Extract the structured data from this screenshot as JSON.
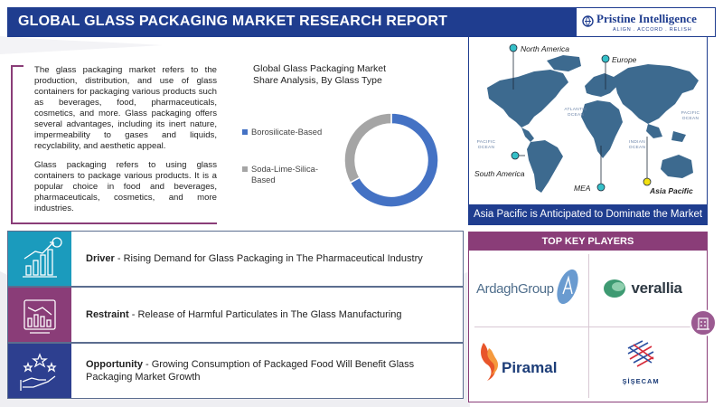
{
  "header": {
    "title": "GLOBAL GLASS PACKAGING MARKET RESEARCH REPORT",
    "brand_name": "Pristine Intelligence",
    "brand_tagline": "ALIGN . ACCORD . RELISH"
  },
  "intro": {
    "paragraph_1": "The glass packaging market refers to the production, distribution, and use of glass containers for packaging various products such as beverages, food, pharmaceuticals, cosmetics, and more. Glass packaging offers several advantages, including its inert nature, impermeability to gases and liquids, recyclability, and aesthetic appeal.",
    "paragraph_2": "Glass packaging refers to using glass containers to package various products. It is a popular choice in food and beverages, pharmaceuticals, cosmetics, and more industries."
  },
  "chart_data": {
    "type": "pie",
    "donut": true,
    "title": "Global Glass Packaging Market Share Analysis, By Glass Type",
    "categories": [
      "Borosilicate-Based",
      "Soda-Lime-Silica-Based"
    ],
    "values": [
      67,
      33
    ],
    "colors": [
      "#4472c4",
      "#a5a5a5"
    ],
    "legend_position": "left"
  },
  "map": {
    "regions": [
      "North America",
      "Europe",
      "South America",
      "MEA",
      "Asia Pacific"
    ],
    "highlight_region": "Asia Pacific",
    "oceans": {
      "atlantic": "ATLANTIC OCEAN",
      "pacific_left": "PACIFIC OCEAN",
      "pacific_right": "PACIFIC OCEAN",
      "indian": "INDIAN OCEAN"
    },
    "caption": "Asia Pacific is Anticipated to Dominate the Market",
    "marker_color": "#35c0c8",
    "highlight_color": "#f2e010"
  },
  "factors": [
    {
      "title": "Driver",
      "text": " - Rising Demand for Glass Packaging in The Pharmaceutical Industry",
      "color": "#1b9bbd",
      "icon": "growth-chart-icon"
    },
    {
      "title": "Restraint",
      "text": " - Release of Harmful Particulates in The Glass Manufacturing",
      "color": "#8a3d78",
      "icon": "declining-chart-icon"
    },
    {
      "title": "Opportunity",
      "text": " - Growing Consumption of Packaged Food Will Benefit Glass Packaging Market Growth",
      "color": "#2d3f8f",
      "icon": "hand-stars-icon"
    }
  ],
  "players": {
    "header": "TOP KEY PLAYERS",
    "companies": [
      "ArdaghGroup",
      "verallia",
      "Piramal",
      "ŞİŞECAM"
    ]
  }
}
